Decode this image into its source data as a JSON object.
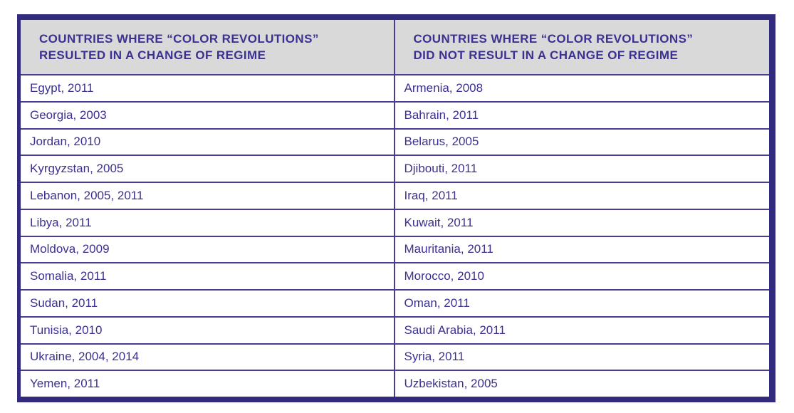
{
  "colors": {
    "frame_border": "#312a7d",
    "grid_line": "#473d96",
    "text": "#3b3191",
    "header_background": "#d9d9d9",
    "body_background": "#ffffff"
  },
  "table": {
    "headers": {
      "left": {
        "line1": "COUNTRIES WHERE “COLOR REVOLUTIONS”",
        "line2": "RESULTED IN A CHANGE OF REGIME"
      },
      "right": {
        "line1": "COUNTRIES WHERE “COLOR REVOLUTIONS”",
        "line2": "DID NOT RESULT IN A CHANGE OF REGIME"
      }
    },
    "rows": [
      {
        "left": "Egypt, 2011",
        "right": "Armenia, 2008"
      },
      {
        "left": "Georgia, 2003",
        "right": "Bahrain, 2011"
      },
      {
        "left": "Jordan, 2010",
        "right": "Belarus, 2005"
      },
      {
        "left": "Kyrgyzstan, 2005",
        "right": "Djibouti, 2011"
      },
      {
        "left": "Lebanon, 2005, 2011",
        "right": "Iraq, 2011"
      },
      {
        "left": "Libya, 2011",
        "right": "Kuwait, 2011"
      },
      {
        "left": "Moldova, 2009",
        "right": "Mauritania, 2011"
      },
      {
        "left": "Somalia, 2011",
        "right": "Morocco, 2010"
      },
      {
        "left": "Sudan, 2011",
        "right": "Oman, 2011"
      },
      {
        "left": "Tunisia, 2010",
        "right": "Saudi Arabia, 2011"
      },
      {
        "left": "Ukraine, 2004, 2014",
        "right": "Syria, 2011"
      },
      {
        "left": "Yemen, 2011",
        "right": "Uzbekistan, 2005"
      }
    ]
  }
}
